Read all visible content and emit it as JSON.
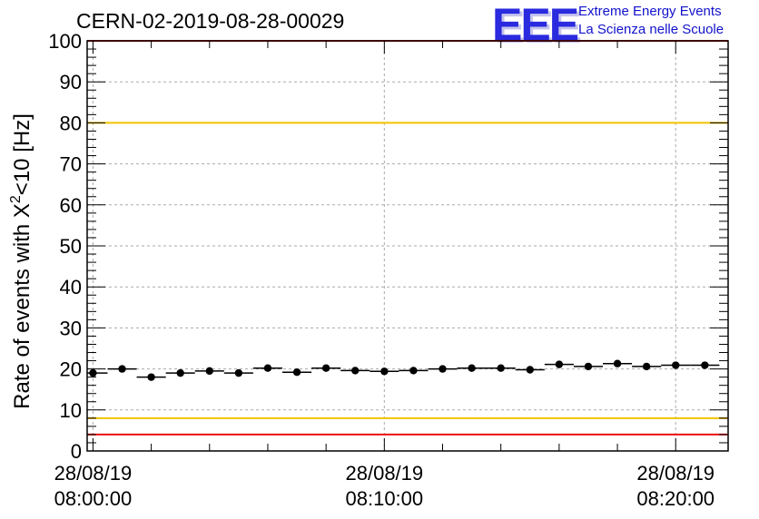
{
  "header": {
    "title": "CERN-02-2019-08-28-00029",
    "logo_text": "EEE",
    "logo_line1": "Extreme Energy Events",
    "logo_line2": "La Scienza nelle Scuole"
  },
  "chart_data": {
    "type": "scatter",
    "title": "CERN-02-2019-08-28-00029",
    "xlabel": "",
    "ylabel_main": "Rate of events with X",
    "ylabel_sup": "2",
    "ylabel_tail": "<10 [Hz]",
    "ylim": [
      0,
      100
    ],
    "y_ticks": [
      0,
      10,
      20,
      30,
      40,
      50,
      60,
      70,
      80,
      90,
      100
    ],
    "xlim_minutes": [
      -0.2,
      21.8
    ],
    "x_ticks": [
      {
        "minutes": 0,
        "date": "28/08/19",
        "time": "08:00:00"
      },
      {
        "minutes": 10,
        "date": "28/08/19",
        "time": "08:10:00"
      },
      {
        "minutes": 20,
        "date": "28/08/19",
        "time": "08:20:00"
      }
    ],
    "grid": true,
    "reference_lines": [
      {
        "value": 100,
        "color": "#ee1111"
      },
      {
        "value": 80,
        "color": "#f2c200"
      },
      {
        "value": 8,
        "color": "#f2c200"
      },
      {
        "value": 4,
        "color": "#ee1111"
      }
    ],
    "series": [
      {
        "color": "#000000",
        "bin_width_minutes": 1,
        "x_minutes": [
          0,
          1,
          2,
          3,
          4,
          5,
          6,
          7,
          8,
          9,
          10,
          11,
          12,
          13,
          14,
          15,
          16,
          17,
          18,
          19,
          20,
          21
        ],
        "y": [
          19.0,
          20.0,
          18.0,
          19.0,
          19.5,
          19.0,
          20.2,
          19.2,
          20.2,
          19.6,
          19.4,
          19.6,
          20.0,
          20.2,
          20.2,
          19.8,
          21.1,
          20.6,
          21.3,
          20.6,
          20.9,
          20.9
        ]
      }
    ]
  }
}
